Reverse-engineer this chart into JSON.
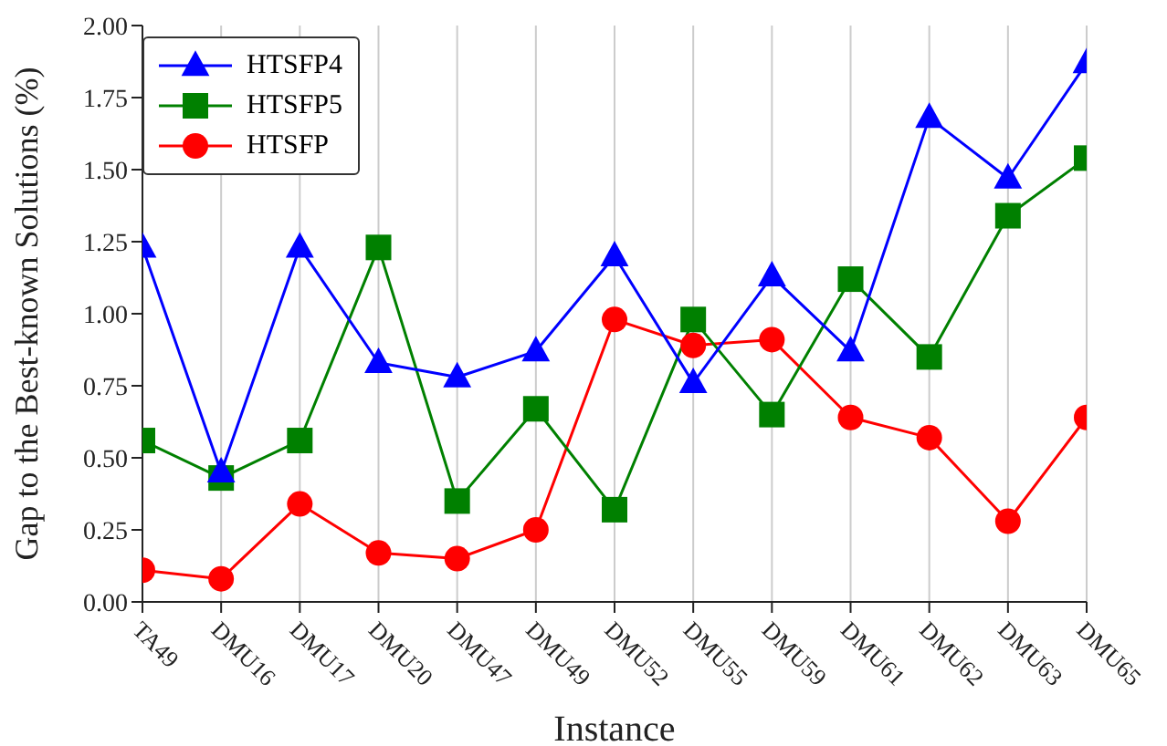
{
  "chart_data": {
    "type": "line",
    "xlabel": "Instance",
    "ylabel": "Gap to the Best-known Solutions (%)",
    "categories": [
      "TA49",
      "DMU16",
      "DMU17",
      "DMU20",
      "DMU47",
      "DMU49",
      "DMU52",
      "DMU55",
      "DMU59",
      "DMU61",
      "DMU62",
      "DMU63",
      "DMU65"
    ],
    "series": [
      {
        "name": "HTSFP4",
        "color": "#0000ff",
        "marker": "triangle",
        "values": [
          1.23,
          0.45,
          1.23,
          0.83,
          0.78,
          0.87,
          1.2,
          0.76,
          1.13,
          0.87,
          1.68,
          1.47,
          1.87
        ]
      },
      {
        "name": "HTSFP5",
        "color": "#008000",
        "marker": "square",
        "values": [
          0.56,
          0.43,
          0.56,
          1.23,
          0.35,
          0.67,
          0.32,
          0.98,
          0.65,
          1.12,
          0.85,
          1.34,
          1.54
        ]
      },
      {
        "name": "HTSFP",
        "color": "#ff0000",
        "marker": "circle",
        "values": [
          0.11,
          0.08,
          0.34,
          0.17,
          0.15,
          0.25,
          0.98,
          0.89,
          0.91,
          0.64,
          0.57,
          0.28,
          0.64
        ]
      }
    ],
    "ylim": [
      0,
      2
    ],
    "yticks": [
      {
        "value": 0,
        "label": "0.00"
      },
      {
        "value": 0.25,
        "label": "0.25"
      },
      {
        "value": 0.5,
        "label": "0.50"
      },
      {
        "value": 0.75,
        "label": "0.75"
      },
      {
        "value": 1,
        "label": "1.00"
      },
      {
        "value": 1.25,
        "label": "1.25"
      },
      {
        "value": 1.5,
        "label": "1.50"
      },
      {
        "value": 1.75,
        "label": "1.75"
      },
      {
        "value": 2,
        "label": "2.00"
      }
    ],
    "grid": "x",
    "legend": "top left",
    "line_style": "solid"
  }
}
